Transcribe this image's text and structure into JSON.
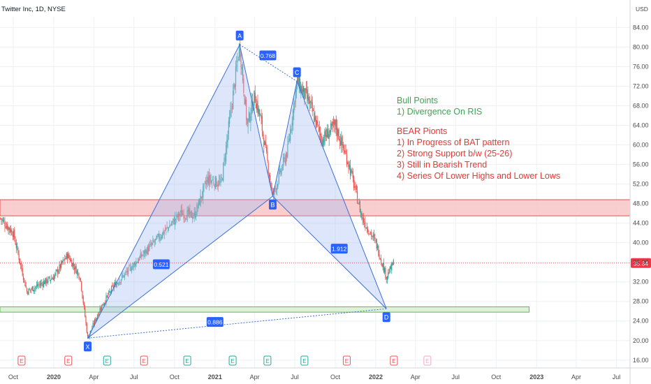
{
  "header": {
    "title": "Twitter Inc, 1D, NYSE"
  },
  "currency": "USD",
  "colors": {
    "up": "#26a69a",
    "down": "#ef5350",
    "pattern_fill": "#a9c1f2",
    "pattern_stroke": "#3d6fd9",
    "label_bg": "#2962ff",
    "resistance_zone": "#f7c6c7",
    "support_zone": "#d9f0d3",
    "bull_text": "#3aa655",
    "bear_text": "#e53935",
    "price_tag": "#f23645"
  },
  "notes": {
    "bull_title": "Bull Points",
    "bull_items": [
      "1) Divergence On RIS"
    ],
    "bear_title": "BEAR Pionts",
    "bear_items": [
      "1) In Progress of BAT pattern",
      "2) Strong Support b/w (25-26)",
      "3) Still in Bearish Trend",
      "4) Series Of Lower Highs and Lower Lows"
    ]
  },
  "chart_data": {
    "type": "line",
    "title": "Twitter Inc, 1D, NYSE",
    "ylabel": "USD",
    "ylim": [
      14.4,
      86.2
    ],
    "y_ticks": [
      16.0,
      20.0,
      24.0,
      28.0,
      32.0,
      36.0,
      40.0,
      44.0,
      48.0,
      52.0,
      56.0,
      60.0,
      64.0,
      68.0,
      72.0,
      76.0,
      80.0,
      84.0
    ],
    "x_ticks": [
      "Oct",
      "2020",
      "Apr",
      "Jul",
      "Oct",
      "2021",
      "Apr",
      "Jul",
      "Oct",
      "2022",
      "Apr",
      "Jul",
      "Oct",
      "2023",
      "Apr",
      "Jul"
    ],
    "x_ticks_bold": [
      "2020",
      "2021",
      "2022",
      "2023"
    ],
    "last_price": 35.84,
    "last_price_label": "35.84",
    "price_series_approx": {
      "name": "",
      "x": [
        "2019-09-02",
        "2019-10-01",
        "2019-11-01",
        "2019-12-01",
        "2020-01-01",
        "2020-02-01",
        "2020-03-01",
        "2020-03-18",
        "2020-04-15",
        "2020-05-15",
        "2020-06-15",
        "2020-07-15",
        "2020-08-15",
        "2020-09-15",
        "2020-10-15",
        "2020-11-15",
        "2020-12-15",
        "2021-01-15",
        "2021-02-26",
        "2021-03-15",
        "2021-04-01",
        "2021-04-15",
        "2021-05-12",
        "2021-06-15",
        "2021-07-06",
        "2021-08-01",
        "2021-09-01",
        "2021-10-01",
        "2021-11-01",
        "2021-12-01",
        "2022-01-01",
        "2022-01-25",
        "2022-02-10"
      ],
      "y": [
        45.0,
        42.0,
        30.0,
        31.5,
        33.0,
        37.5,
        33.0,
        20.5,
        26.5,
        31.0,
        34.0,
        37.0,
        40.0,
        43.0,
        46.0,
        45.5,
        53.0,
        52.0,
        80.5,
        64.0,
        70.0,
        65.0,
        49.5,
        59.0,
        73.0,
        69.0,
        61.0,
        64.0,
        56.0,
        45.0,
        40.0,
        33.0,
        35.84
      ]
    },
    "pattern": {
      "name": "BAT",
      "points": [
        {
          "label": "X",
          "x": "2020-03-18",
          "y": 20.5
        },
        {
          "label": "A",
          "x": "2021-02-26",
          "y": 80.5
        },
        {
          "label": "B",
          "x": "2021-05-12",
          "y": 49.5
        },
        {
          "label": "C",
          "x": "2021-07-06",
          "y": 73.0
        },
        {
          "label": "D",
          "x": "2022-01-25",
          "y": 26.5
        }
      ],
      "ratios": [
        {
          "value": "0.768",
          "x": "2021-05-01",
          "y": 78.3
        },
        {
          "value": "0.521",
          "x": "2020-09-01",
          "y": 35.6
        },
        {
          "value": "1.912",
          "x": "2021-10-10",
          "y": 38.8
        },
        {
          "value": "0.886",
          "x": "2021-01-01",
          "y": 23.8
        }
      ]
    },
    "zones": [
      {
        "kind": "resistance",
        "from": 45.5,
        "to": 48.8,
        "start": "2019-09-01"
      },
      {
        "kind": "support",
        "from": 25.8,
        "to": 26.9,
        "start": "2019-09-01",
        "end": "2022-12-15"
      }
    ],
    "events": [
      {
        "x": "2019-10-20",
        "label": "E",
        "kind": "earnings-bad"
      },
      {
        "x": "2020-02-03",
        "label": "E",
        "kind": "earnings-bad"
      },
      {
        "x": "2020-05-01",
        "label": "E",
        "kind": "earnings-good"
      },
      {
        "x": "2020-07-24",
        "label": "E",
        "kind": "earnings-bad"
      },
      {
        "x": "2020-10-30",
        "label": "E",
        "kind": "earnings-good"
      },
      {
        "x": "2021-02-10",
        "label": "E",
        "kind": "earnings-good"
      },
      {
        "x": "2021-04-30",
        "label": "E",
        "kind": "earnings-good"
      },
      {
        "x": "2021-07-23",
        "label": "E",
        "kind": "earnings-good"
      },
      {
        "x": "2021-10-27",
        "label": "E",
        "kind": "earnings-bad"
      },
      {
        "x": "2022-02-11",
        "label": "E",
        "kind": "earnings-bad"
      },
      {
        "x": "2022-04-28",
        "label": "E",
        "kind": "earnings-upcoming"
      }
    ],
    "grid": true,
    "legend": "none"
  }
}
